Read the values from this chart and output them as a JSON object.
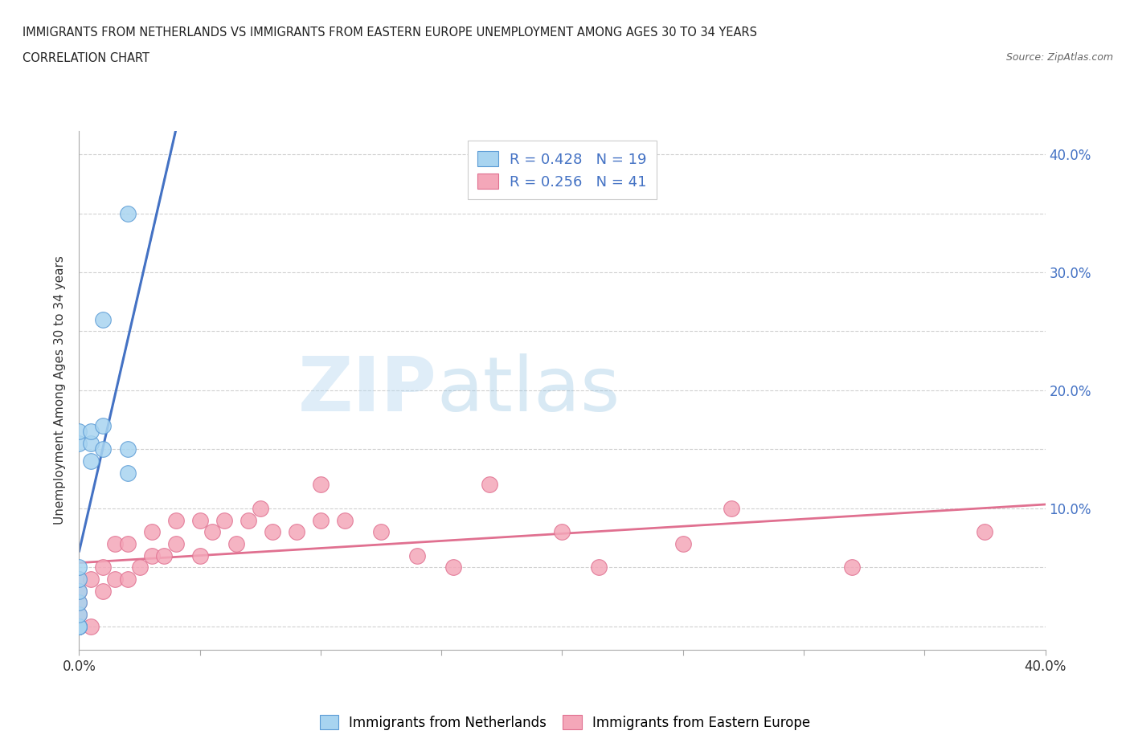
{
  "title_line1": "IMMIGRANTS FROM NETHERLANDS VS IMMIGRANTS FROM EASTERN EUROPE UNEMPLOYMENT AMONG AGES 30 TO 34 YEARS",
  "title_line2": "CORRELATION CHART",
  "source_text": "Source: ZipAtlas.com",
  "ylabel": "Unemployment Among Ages 30 to 34 years",
  "xlim": [
    0.0,
    0.4
  ],
  "ylim": [
    -0.02,
    0.42
  ],
  "x_ticks": [
    0.0,
    0.05,
    0.1,
    0.15,
    0.2,
    0.25,
    0.3,
    0.35,
    0.4
  ],
  "y_ticks": [
    0.0,
    0.05,
    0.1,
    0.15,
    0.2,
    0.25,
    0.3,
    0.35,
    0.4
  ],
  "y_tick_labels_right": [
    "",
    "",
    "10.0%",
    "",
    "20.0%",
    "",
    "30.0%",
    "",
    "40.0%"
  ],
  "netherlands_color": "#A8D4F0",
  "netherlands_edge": "#5B9BD5",
  "eastern_europe_color": "#F4A7B9",
  "eastern_europe_edge": "#E07090",
  "trend_netherlands_color": "#4472C4",
  "trend_eastern_europe_color": "#E07090",
  "R_netherlands": 0.428,
  "N_netherlands": 19,
  "R_eastern_europe": 0.256,
  "N_eastern_europe": 41,
  "legend_label_netherlands": "Immigrants from Netherlands",
  "legend_label_eastern": "Immigrants from Eastern Europe",
  "watermark_zip": "ZIP",
  "watermark_atlas": "atlas",
  "netherlands_x": [
    0.0,
    0.0,
    0.0,
    0.0,
    0.0,
    0.0,
    0.0,
    0.0,
    0.0,
    0.0,
    0.005,
    0.005,
    0.005,
    0.01,
    0.01,
    0.01,
    0.02,
    0.02,
    0.02
  ],
  "netherlands_y": [
    0.0,
    0.0,
    0.0,
    0.01,
    0.02,
    0.03,
    0.04,
    0.05,
    0.155,
    0.165,
    0.14,
    0.155,
    0.165,
    0.15,
    0.17,
    0.26,
    0.13,
    0.15,
    0.35
  ],
  "eastern_europe_x": [
    0.0,
    0.0,
    0.0,
    0.0,
    0.0,
    0.005,
    0.005,
    0.01,
    0.01,
    0.015,
    0.015,
    0.02,
    0.02,
    0.025,
    0.03,
    0.03,
    0.035,
    0.04,
    0.04,
    0.05,
    0.05,
    0.055,
    0.06,
    0.065,
    0.07,
    0.075,
    0.08,
    0.09,
    0.1,
    0.1,
    0.11,
    0.125,
    0.14,
    0.155,
    0.17,
    0.2,
    0.215,
    0.25,
    0.27,
    0.32,
    0.375
  ],
  "eastern_europe_y": [
    0.0,
    0.01,
    0.02,
    0.03,
    0.04,
    0.0,
    0.04,
    0.03,
    0.05,
    0.04,
    0.07,
    0.04,
    0.07,
    0.05,
    0.06,
    0.08,
    0.06,
    0.07,
    0.09,
    0.06,
    0.09,
    0.08,
    0.09,
    0.07,
    0.09,
    0.1,
    0.08,
    0.08,
    0.09,
    0.12,
    0.09,
    0.08,
    0.06,
    0.05,
    0.12,
    0.08,
    0.05,
    0.07,
    0.1,
    0.05,
    0.08
  ]
}
